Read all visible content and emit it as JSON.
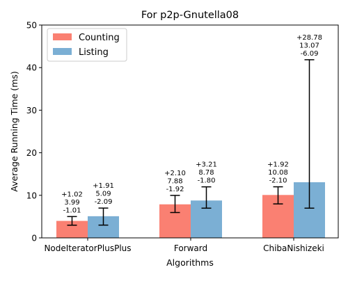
{
  "chart_data": {
    "type": "bar",
    "title": "For p2p-Gnutella08",
    "xlabel": "Algorithms",
    "ylabel": "Average Running Time (ms)",
    "ylim": [
      0,
      50
    ],
    "yticks": [
      0,
      10,
      20,
      30,
      40,
      50
    ],
    "categories": [
      "NodeIteratorPlusPlus",
      "Forward",
      "ChibaNishizeki"
    ],
    "legend_position": "top-left",
    "grid": false,
    "series": [
      {
        "name": "Counting",
        "color": "#fa8072",
        "values": [
          3.99,
          7.88,
          10.08
        ],
        "err_plus": [
          1.02,
          2.1,
          1.92
        ],
        "err_minus": [
          1.01,
          1.92,
          2.1
        ],
        "labels": [
          [
            "+1.02",
            "3.99",
            "-1.01"
          ],
          [
            "+2.10",
            "7.88",
            "-1.92"
          ],
          [
            "+1.92",
            "10.08",
            "-2.10"
          ]
        ]
      },
      {
        "name": "Listing",
        "color": "#7bafd4",
        "values": [
          5.09,
          8.78,
          13.07
        ],
        "err_plus": [
          1.91,
          3.21,
          28.78
        ],
        "err_minus": [
          2.09,
          1.8,
          6.09
        ],
        "labels": [
          [
            "+1.91",
            "5.09",
            "-2.09"
          ],
          [
            "+3.21",
            "8.78",
            "-1.80"
          ],
          [
            "+28.78",
            "13.07",
            "-6.09"
          ]
        ]
      }
    ]
  }
}
